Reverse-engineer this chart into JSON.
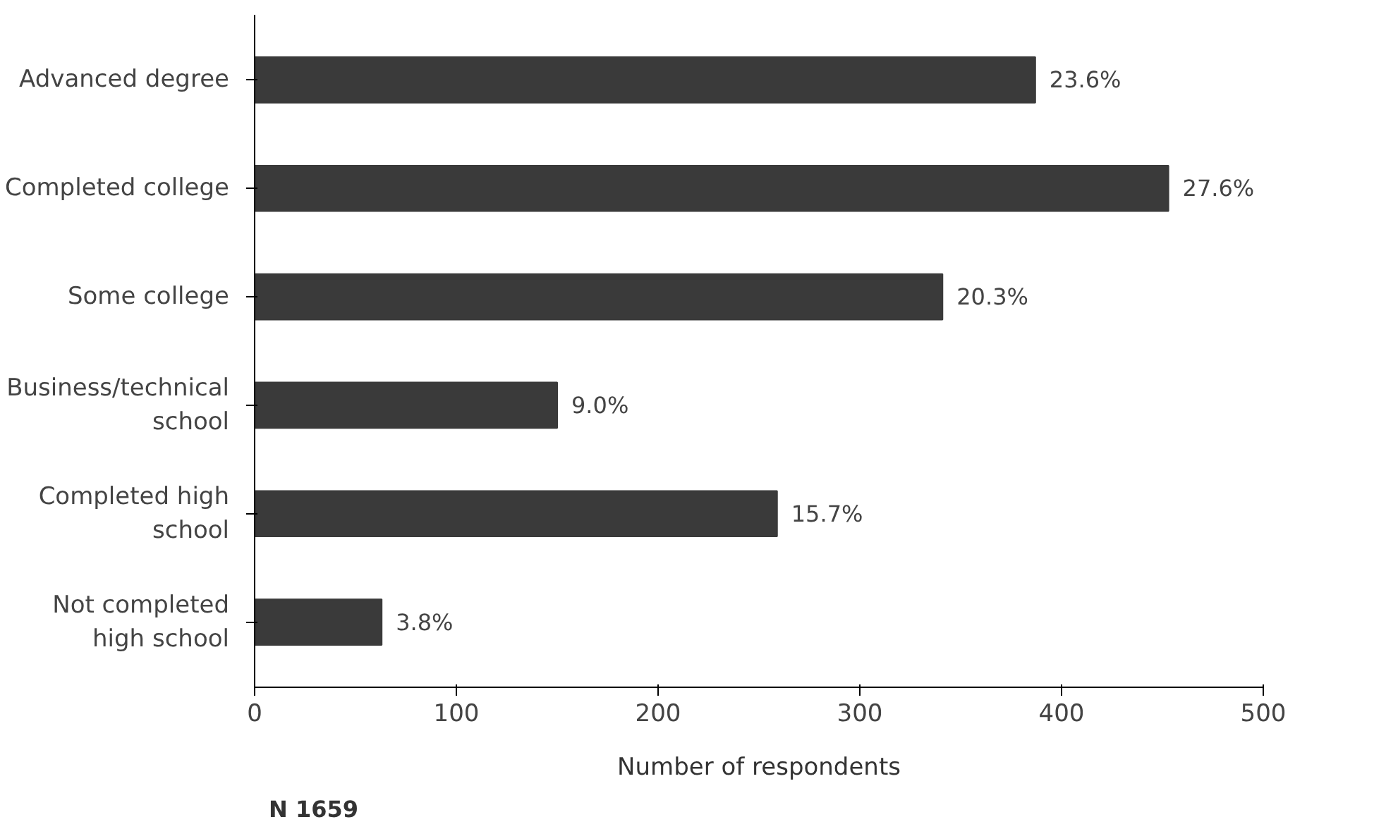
{
  "chart_data": {
    "type": "bar",
    "orientation": "horizontal",
    "categories": [
      "Advanced degree",
      "Completed college",
      "Some college",
      "Business/technical\nschool",
      "Completed high\nschool",
      "Not completed\nhigh school"
    ],
    "values": [
      387,
      453,
      341,
      150,
      259,
      63
    ],
    "color": "#3a3a3a",
    "xlim": [
      0,
      500
    ],
    "xticks": [
      0,
      100,
      200,
      300,
      400,
      500
    ],
    "xlabel": "Number of respondents",
    "annotations": [
      {
        "text": "23.6%",
        "x": 387,
        "y": "Advanced degree"
      },
      {
        "text": "27.6%",
        "x": 453,
        "y": "Completed college"
      },
      {
        "text": "20.3%",
        "x": 341,
        "y": "Some college"
      },
      {
        "text": "9.0%",
        "x": 150,
        "y": "Business/technical\nschool"
      },
      {
        "text": "15.7%",
        "x": 259,
        "y": "Completed high\nschool"
      },
      {
        "text": "3.8%",
        "x": 63,
        "y": "Not completed\nhigh school"
      },
      "N 1659"
    ],
    "grid": false
  }
}
